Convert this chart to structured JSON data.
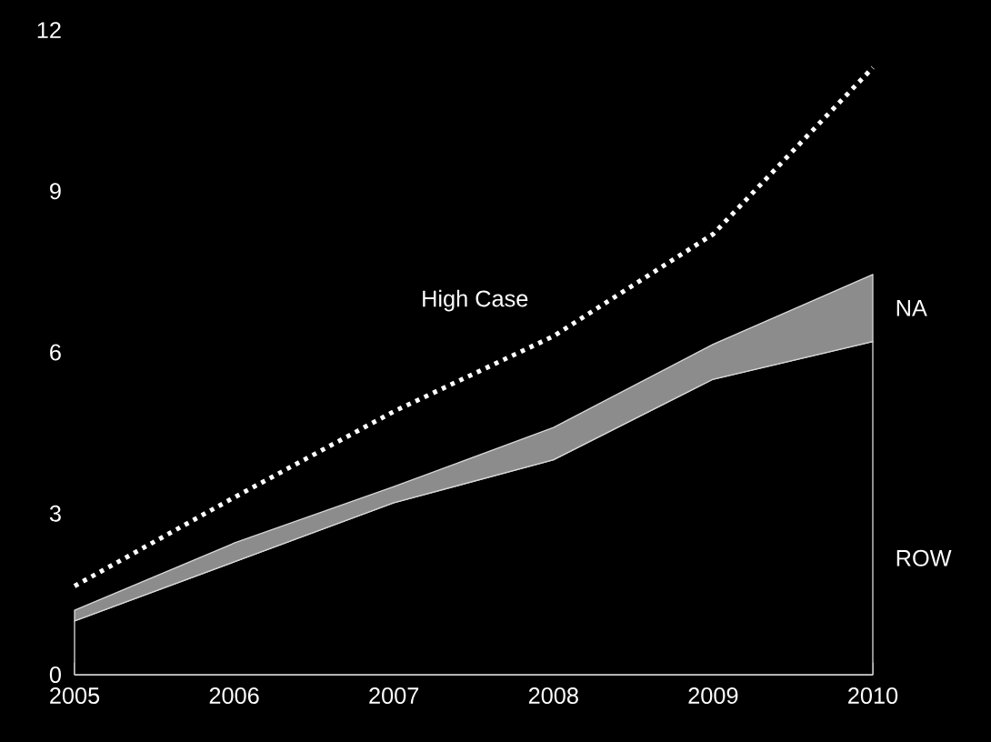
{
  "chart_data": {
    "type": "area",
    "stacked": true,
    "categories": [
      "2005",
      "2006",
      "2007",
      "2008",
      "2009",
      "2010"
    ],
    "ylim": [
      0,
      12
    ],
    "yticks": [
      0,
      3,
      6,
      9,
      12
    ],
    "series": [
      {
        "name": "ROW",
        "color": "#000000",
        "values": [
          1.0,
          2.1,
          3.2,
          4.0,
          5.5,
          6.2
        ]
      },
      {
        "name": "NA",
        "color": "#8c8c8c",
        "values": [
          0.2,
          0.35,
          0.3,
          0.6,
          0.65,
          1.25
        ]
      },
      {
        "name": "High Case",
        "type": "line",
        "line_style": "dotted",
        "color": "#ffffff",
        "values": [
          1.65,
          3.3,
          4.9,
          6.3,
          8.2,
          11.3
        ]
      }
    ]
  }
}
